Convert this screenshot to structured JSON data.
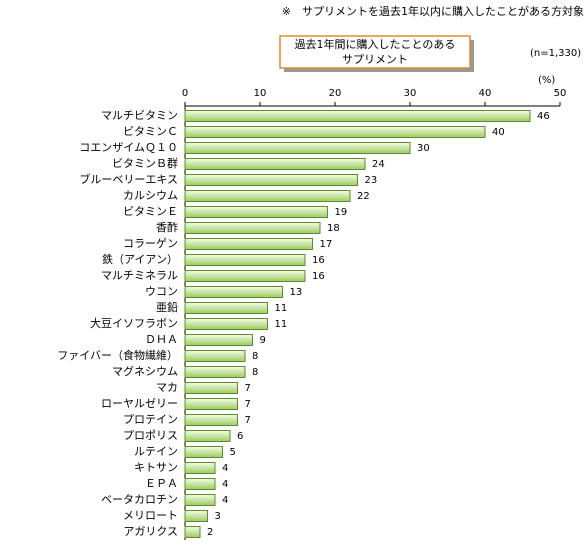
{
  "chart_data": {
    "type": "hbar",
    "note": "※　サプリメントを過去1年以内に購入したことがある方対象",
    "title": [
      "過去1年間に購入したことのある",
      "サプリメント"
    ],
    "sample_size": "(n=1,330)",
    "unit_label": "(%)",
    "categories": [
      "マルチビタミン",
      "ビタミンＣ",
      "コエンザイムＱ１０",
      "ビタミンＢ群",
      "ブルーベリーエキス",
      "カルシウム",
      "ビタミンＥ",
      "香酢",
      "コラーゲン",
      "鉄（アイアン）",
      "マルチミネラル",
      "ウコン",
      "亜鉛",
      "大豆イソフラボン",
      "ＤＨＡ",
      "ファイバー（食物繊維）",
      "マグネシウム",
      "マカ",
      "ローヤルゼリー",
      "プロテイン",
      "プロポリス",
      "ルテイン",
      "キトサン",
      "ＥＰＡ",
      "ベータカロチン",
      "メリロート",
      "アガリクス"
    ],
    "values": [
      46,
      40,
      30,
      24,
      23,
      22,
      19,
      18,
      17,
      16,
      16,
      13,
      11,
      11,
      9,
      8,
      8,
      7,
      7,
      7,
      6,
      5,
      4,
      4,
      4,
      3,
      2
    ],
    "color": "#b8dc8a",
    "xlim": [
      0,
      50
    ],
    "xticks": [
      0,
      10,
      20,
      30,
      40,
      50
    ]
  }
}
